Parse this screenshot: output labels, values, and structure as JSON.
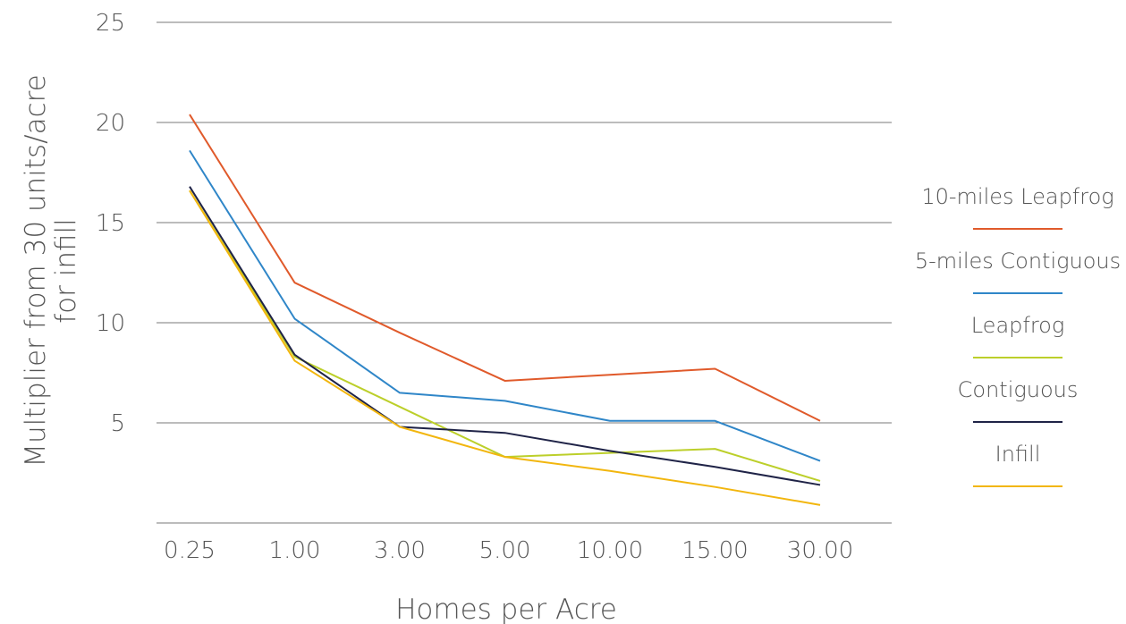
{
  "chart_data": {
    "type": "line",
    "title": "",
    "xlabel": "Homes per Acre",
    "ylabel_lines": [
      "Multiplier from 30 units/acre",
      "for infill"
    ],
    "categories": [
      "0.25",
      "1.00",
      "3.00",
      "5.00",
      "10.00",
      "15.00",
      "30.00"
    ],
    "ylim": [
      0,
      25
    ],
    "yticks": [
      "5",
      "10",
      "15",
      "20",
      "25"
    ],
    "grid": true,
    "legend_position": "right",
    "series": [
      {
        "name": "10-miles Leapfrog",
        "color": "#e05a2b",
        "values": [
          20.4,
          12.0,
          9.5,
          7.1,
          7.4,
          7.7,
          5.1
        ]
      },
      {
        "name": "5-miles Contiguous",
        "color": "#2f86c8",
        "values": [
          18.6,
          10.2,
          6.5,
          6.1,
          5.1,
          5.1,
          3.1
        ]
      },
      {
        "name": "Leapfrog",
        "color": "#bccf2a",
        "values": [
          16.6,
          8.3,
          5.8,
          3.3,
          3.5,
          3.7,
          2.1
        ]
      },
      {
        "name": "Contiguous",
        "color": "#1f2347",
        "values": [
          16.8,
          8.4,
          4.8,
          4.5,
          3.6,
          2.8,
          1.9
        ]
      },
      {
        "name": "Infill",
        "color": "#f2b60e",
        "values": [
          16.6,
          8.1,
          4.8,
          3.3,
          2.6,
          1.8,
          0.9
        ]
      }
    ]
  }
}
